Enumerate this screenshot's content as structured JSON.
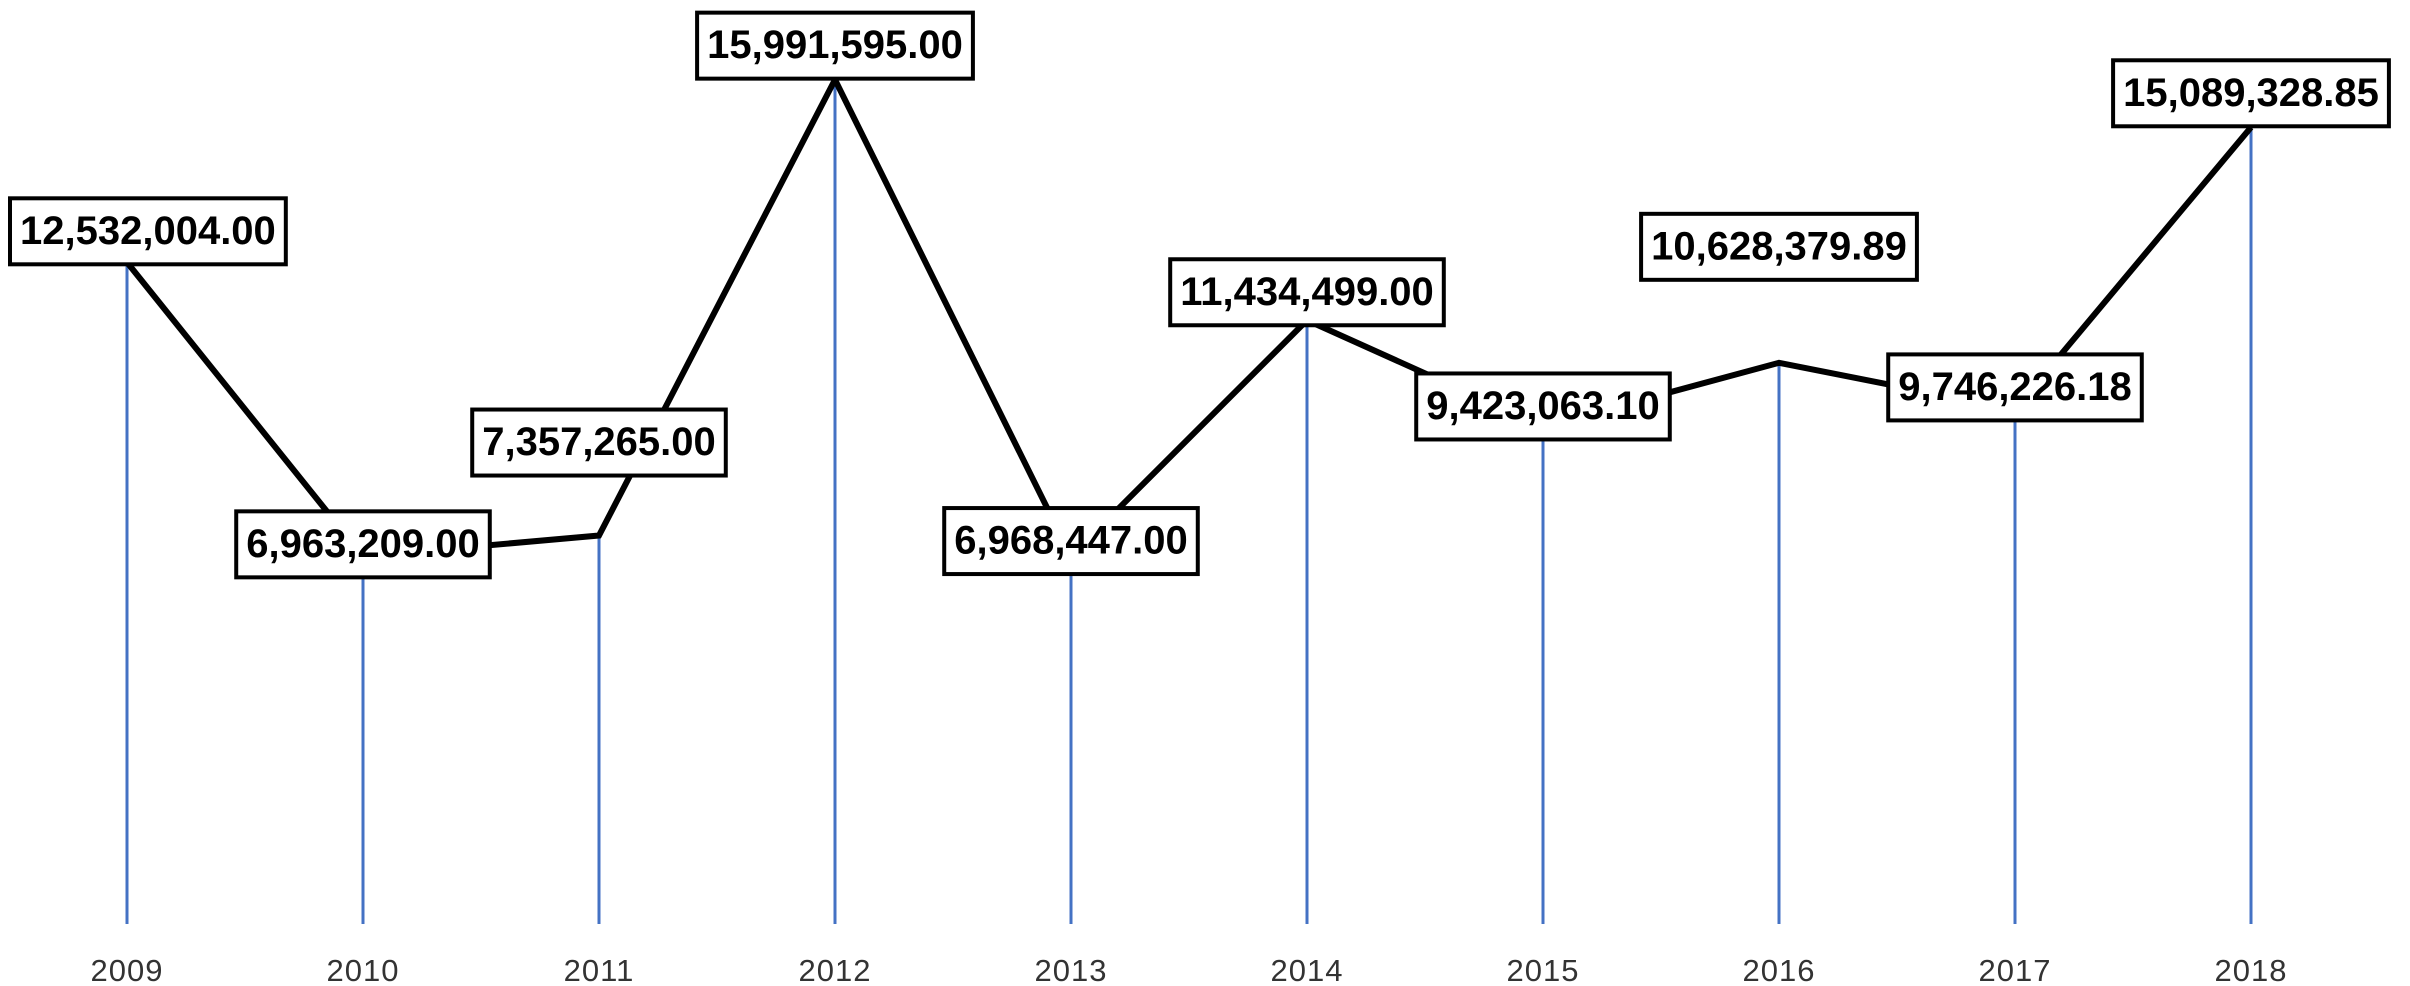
{
  "chart_data": {
    "type": "line",
    "categories": [
      "2009",
      "2010",
      "2011",
      "2012",
      "2013",
      "2014",
      "2015",
      "2016",
      "2017",
      "2018"
    ],
    "values": [
      12532004.0,
      6963209.0,
      7357265.0,
      15991595.0,
      6968447.0,
      11434499.0,
      9423063.1,
      10628379.89,
      9746226.18,
      15089328.85
    ],
    "value_labels": [
      "12,532,004.00",
      "6,963,209.00",
      "7,357,265.00",
      "15,991,595.00",
      "6,968,447.00",
      "11,434,499.00",
      "9,423,063.10",
      "10,628,379.89",
      "9,746,226.18",
      "15,089,328.85"
    ],
    "color": "#000000",
    "drop_line_color": "#4472c4",
    "ylim": [
      0,
      17500000
    ]
  }
}
